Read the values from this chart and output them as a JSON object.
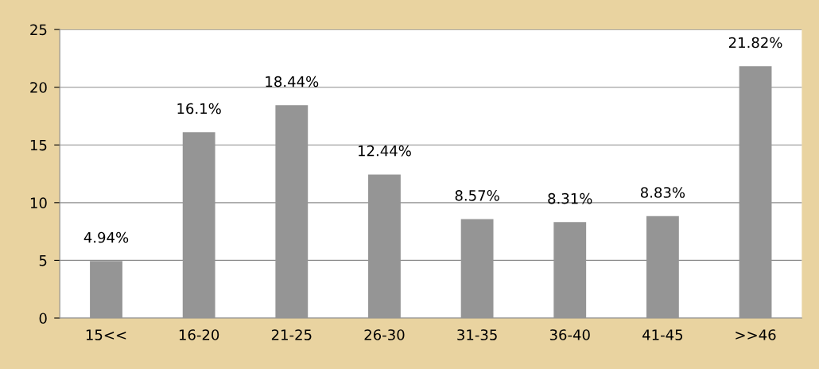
{
  "chart_data": {
    "type": "bar",
    "categories": [
      "15<<",
      "16-20",
      "21-25",
      "26-30",
      "31-35",
      "36-40",
      "41-45",
      ">>46"
    ],
    "values": [
      4.94,
      16.1,
      18.44,
      12.44,
      8.57,
      8.31,
      8.83,
      21.82
    ],
    "value_labels": [
      "4.94%",
      "16.1%",
      "18.44%",
      "12.44%",
      "8.57%",
      "8.31%",
      "8.83%",
      "21.82%"
    ],
    "color": "#959595",
    "ylim": [
      0,
      25
    ],
    "yticks": [
      0,
      5,
      10,
      15,
      20,
      25
    ],
    "grid": "y",
    "legend": false
  }
}
